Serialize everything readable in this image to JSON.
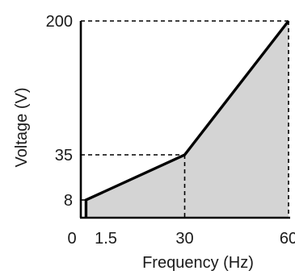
{
  "chart_data": {
    "type": "area",
    "title": "",
    "xlabel": "Frequency (Hz)",
    "ylabel": "Voltage (V)",
    "x": [
      1.5,
      30,
      60
    ],
    "series": [
      {
        "values": [
          8,
          35,
          200
        ]
      }
    ],
    "xlim": [
      0,
      60
    ],
    "ylim": [
      0,
      200
    ],
    "x_ticks": [
      {
        "value": 0,
        "label": "0"
      },
      {
        "value": 1.5,
        "label": "1.5"
      },
      {
        "value": 30,
        "label": "30"
      },
      {
        "value": 60,
        "label": "60"
      }
    ],
    "y_ticks": [
      {
        "value": 8,
        "label": "8"
      },
      {
        "value": 35,
        "label": "35"
      },
      {
        "value": 200,
        "label": "200"
      }
    ],
    "grid": false,
    "reference_lines": [
      {
        "x": 1.5,
        "y": 8
      },
      {
        "x": 30,
        "y": 35
      },
      {
        "x": 60,
        "y": 200
      }
    ],
    "colors": {
      "line": "#000000",
      "fill": "#d4d4d4",
      "axis": "#000000",
      "reference": "#000000"
    }
  }
}
